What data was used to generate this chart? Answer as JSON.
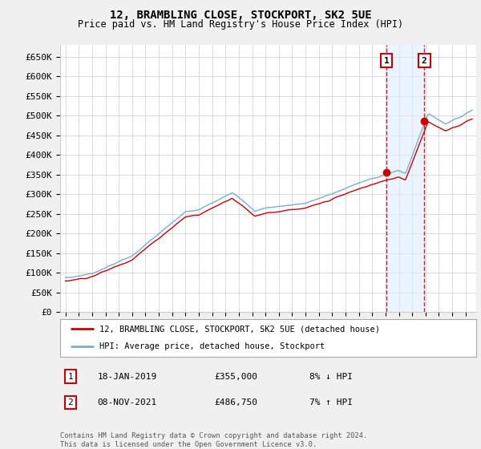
{
  "title": "12, BRAMBLING CLOSE, STOCKPORT, SK2 5UE",
  "subtitle": "Price paid vs. HM Land Registry's House Price Index (HPI)",
  "ylabel_ticks": [
    "£0",
    "£50K",
    "£100K",
    "£150K",
    "£200K",
    "£250K",
    "£300K",
    "£350K",
    "£400K",
    "£450K",
    "£500K",
    "£550K",
    "£600K",
    "£650K"
  ],
  "ytick_values": [
    0,
    50000,
    100000,
    150000,
    200000,
    250000,
    300000,
    350000,
    400000,
    450000,
    500000,
    550000,
    600000,
    650000
  ],
  "ylim": [
    0,
    680000
  ],
  "hpi_color": "#7aadd4",
  "price_color": "#cc0000",
  "sale1_year": 2019.05,
  "sale2_year": 2021.85,
  "sale1_value": 355000,
  "sale2_value": 486750,
  "sale1_label": "18-JAN-2019",
  "sale1_price": "£355,000",
  "sale1_hpi": "8% ↓ HPI",
  "sale2_label": "08-NOV-2021",
  "sale2_price": "£486,750",
  "sale2_hpi": "7% ↑ HPI",
  "legend_line1": "12, BRAMBLING CLOSE, STOCKPORT, SK2 5UE (detached house)",
  "legend_line2": "HPI: Average price, detached house, Stockport",
  "footer": "Contains HM Land Registry data © Crown copyright and database right 2024.\nThis data is licensed under the Open Government Licence v3.0.",
  "background_color": "#f0f0f0",
  "plot_bg_color": "#ffffff",
  "grid_color": "#cccccc",
  "shade_color": "#ddeeff"
}
